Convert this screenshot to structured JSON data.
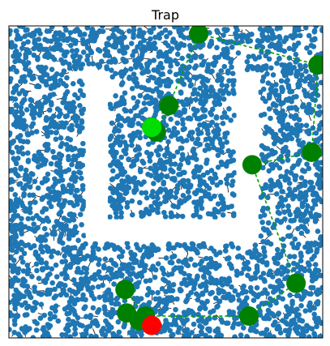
{
  "chart_data": {
    "type": "scatter",
    "title": "Trap",
    "xlabel": "",
    "ylabel": "",
    "xlim": [
      0,
      1
    ],
    "ylim": [
      0,
      1
    ],
    "grid": false,
    "axis_ticks": false,
    "colors": {
      "samples": "#1f77b4",
      "edges": "#000000",
      "path_nodes": "#008000",
      "path_edges": "#00a000",
      "start": "#ff0000",
      "goal": "#00dd00"
    },
    "obstacle": {
      "shape": "U",
      "color": "#ffffff",
      "left_bar": {
        "x": [
          0.245,
          0.315
        ],
        "y": [
          0.31,
          0.85
        ]
      },
      "right_bar": {
        "x": [
          0.725,
          0.795
        ],
        "y": [
          0.31,
          0.85
        ]
      },
      "bottom_bar": {
        "x": [
          0.245,
          0.795
        ],
        "y": [
          0.31,
          0.38
        ]
      }
    },
    "sample_cloud": {
      "count": 3400
    },
    "start": {
      "x": 0.455,
      "y": 0.04
    },
    "goal": {
      "x": 0.455,
      "y": 0.675
    },
    "path_nodes": [
      {
        "x": 0.455,
        "y": 0.04
      },
      {
        "x": 0.415,
        "y": 0.055
      },
      {
        "x": 0.375,
        "y": 0.08
      },
      {
        "x": 0.37,
        "y": 0.155
      },
      {
        "x": 0.435,
        "y": 0.07
      },
      {
        "x": 0.765,
        "y": 0.07
      },
      {
        "x": 0.915,
        "y": 0.175
      },
      {
        "x": 0.775,
        "y": 0.555
      },
      {
        "x": 0.965,
        "y": 0.595
      },
      {
        "x": 0.985,
        "y": 0.875
      },
      {
        "x": 0.605,
        "y": 0.975
      },
      {
        "x": 0.51,
        "y": 0.745
      },
      {
        "x": 0.47,
        "y": 0.66
      },
      {
        "x": 0.455,
        "y": 0.675
      }
    ]
  }
}
